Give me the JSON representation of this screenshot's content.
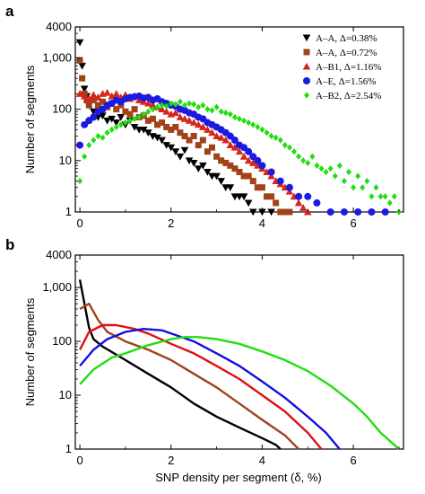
{
  "chart_data": [
    {
      "panel": "a",
      "type": "scatter",
      "ylabel": "Number of segments",
      "xlabel": "",
      "xlim": [
        -0.1,
        7.1
      ],
      "ylim": [
        1,
        4000
      ],
      "yscale": "log",
      "xticks": [
        "0",
        "2",
        "4",
        "6"
      ],
      "yticks": [
        "1",
        "10",
        "100",
        "1,000",
        "4000"
      ],
      "legend_position": "top-right",
      "series": [
        {
          "name": "A–A, Δ=0.38%",
          "marker": "triangle-down",
          "color": "#000000",
          "x": [
            0.0,
            0.05,
            0.1,
            0.15,
            0.2,
            0.3,
            0.4,
            0.5,
            0.6,
            0.7,
            0.8,
            0.9,
            1.0,
            1.1,
            1.2,
            1.3,
            1.4,
            1.5,
            1.6,
            1.7,
            1.8,
            1.9,
            2.0,
            2.1,
            2.2,
            2.3,
            2.4,
            2.5,
            2.6,
            2.7,
            2.8,
            2.9,
            3.0,
            3.1,
            3.2,
            3.3,
            3.4,
            3.5,
            3.6,
            3.7,
            3.8,
            4.0,
            4.2
          ],
          "y": [
            2000,
            700,
            250,
            180,
            120,
            90,
            70,
            75,
            60,
            65,
            55,
            70,
            50,
            60,
            45,
            40,
            40,
            35,
            30,
            28,
            25,
            20,
            18,
            15,
            12,
            16,
            10,
            9,
            7,
            8,
            6,
            5,
            5,
            4,
            3,
            3,
            2,
            2,
            2,
            1.5,
            1,
            1,
            1
          ]
        },
        {
          "name": "A–A, Δ=0.72%",
          "marker": "square",
          "color": "#a0421a",
          "x": [
            0.0,
            0.05,
            0.1,
            0.15,
            0.2,
            0.3,
            0.4,
            0.5,
            0.6,
            0.7,
            0.8,
            0.9,
            1.0,
            1.1,
            1.2,
            1.3,
            1.4,
            1.5,
            1.6,
            1.7,
            1.8,
            1.9,
            2.0,
            2.1,
            2.2,
            2.3,
            2.4,
            2.5,
            2.6,
            2.7,
            2.8,
            2.9,
            3.0,
            3.1,
            3.2,
            3.3,
            3.4,
            3.5,
            3.6,
            3.7,
            3.8,
            3.9,
            4.0,
            4.1,
            4.2,
            4.3,
            4.4,
            4.5,
            4.6
          ],
          "y": [
            900,
            400,
            200,
            150,
            120,
            150,
            120,
            140,
            110,
            130,
            100,
            120,
            90,
            80,
            100,
            70,
            75,
            60,
            65,
            50,
            55,
            45,
            40,
            45,
            35,
            30,
            25,
            30,
            20,
            25,
            15,
            18,
            12,
            10,
            9,
            8,
            7,
            6,
            5,
            5,
            4,
            3,
            3,
            2,
            2,
            1.5,
            1,
            1,
            1
          ]
        },
        {
          "name": "A–B1, Δ=1.16%",
          "marker": "triangle-up",
          "color": "#d4261a",
          "x": [
            0.0,
            0.1,
            0.2,
            0.3,
            0.4,
            0.5,
            0.6,
            0.7,
            0.8,
            0.9,
            1.0,
            1.1,
            1.2,
            1.3,
            1.4,
            1.5,
            1.6,
            1.7,
            1.8,
            1.9,
            2.0,
            2.1,
            2.2,
            2.3,
            2.4,
            2.5,
            2.6,
            2.7,
            2.8,
            2.9,
            3.0,
            3.1,
            3.2,
            3.3,
            3.4,
            3.5,
            3.6,
            3.7,
            3.8,
            3.9,
            4.0,
            4.1,
            4.2,
            4.3,
            4.4,
            4.5,
            4.6,
            4.7,
            4.8,
            4.9,
            5.0
          ],
          "y": [
            200,
            180,
            160,
            190,
            170,
            200,
            210,
            180,
            200,
            170,
            190,
            160,
            180,
            150,
            140,
            130,
            120,
            110,
            100,
            90,
            80,
            85,
            70,
            65,
            60,
            55,
            50,
            45,
            40,
            35,
            30,
            28,
            25,
            20,
            18,
            15,
            12,
            10,
            9,
            8,
            7,
            6,
            5,
            4,
            3.5,
            3,
            2.5,
            2,
            1.5,
            1.2,
            1
          ]
        },
        {
          "name": "A–E, Δ=1.56%",
          "marker": "circle",
          "color": "#1a1ae0",
          "x": [
            0.0,
            0.1,
            0.2,
            0.3,
            0.4,
            0.5,
            0.6,
            0.7,
            0.8,
            0.9,
            1.0,
            1.1,
            1.2,
            1.3,
            1.4,
            1.5,
            1.6,
            1.7,
            1.8,
            1.9,
            2.0,
            2.1,
            2.2,
            2.3,
            2.4,
            2.5,
            2.6,
            2.7,
            2.8,
            2.9,
            3.0,
            3.1,
            3.2,
            3.3,
            3.4,
            3.5,
            3.6,
            3.7,
            3.8,
            3.9,
            4.0,
            4.2,
            4.4,
            4.6,
            4.8,
            5.0,
            5.2,
            5.5,
            5.8,
            6.1,
            6.4,
            6.7
          ],
          "y": [
            20,
            50,
            60,
            70,
            90,
            100,
            120,
            130,
            150,
            140,
            160,
            170,
            175,
            180,
            165,
            170,
            150,
            160,
            140,
            130,
            120,
            115,
            100,
            95,
            85,
            80,
            70,
            65,
            55,
            50,
            45,
            40,
            35,
            30,
            25,
            20,
            18,
            15,
            12,
            10,
            8,
            6,
            4,
            3,
            2,
            2,
            1.5,
            1,
            1,
            1,
            1,
            1
          ]
        },
        {
          "name": "A–B2, Δ=2.54%",
          "marker": "diamond",
          "color": "#22dd11",
          "x": [
            0.0,
            0.1,
            0.2,
            0.3,
            0.4,
            0.5,
            0.6,
            0.7,
            0.8,
            0.9,
            1.0,
            1.1,
            1.2,
            1.3,
            1.4,
            1.5,
            1.6,
            1.7,
            1.8,
            1.9,
            2.0,
            2.1,
            2.2,
            2.3,
            2.4,
            2.5,
            2.6,
            2.7,
            2.8,
            2.9,
            3.0,
            3.1,
            3.2,
            3.3,
            3.4,
            3.5,
            3.6,
            3.7,
            3.8,
            3.9,
            4.0,
            4.1,
            4.2,
            4.3,
            4.4,
            4.5,
            4.6,
            4.7,
            4.8,
            4.9,
            5.0,
            5.1,
            5.2,
            5.3,
            5.4,
            5.5,
            5.6,
            5.7,
            5.8,
            5.9,
            6.0,
            6.1,
            6.2,
            6.3,
            6.4,
            6.5,
            6.6,
            6.7,
            6.8,
            6.9,
            7.0
          ],
          "y": [
            4,
            12,
            20,
            25,
            30,
            28,
            35,
            40,
            45,
            50,
            55,
            60,
            65,
            70,
            80,
            90,
            100,
            110,
            120,
            115,
            130,
            125,
            140,
            120,
            130,
            125,
            110,
            120,
            100,
            95,
            110,
            90,
            85,
            80,
            70,
            65,
            60,
            55,
            50,
            45,
            40,
            35,
            30,
            28,
            25,
            20,
            18,
            15,
            12,
            10,
            9,
            12,
            8,
            7,
            6,
            7,
            5,
            8,
            4,
            6,
            3,
            5,
            3,
            4,
            2,
            3,
            2,
            2,
            1.5,
            2,
            1
          ]
        }
      ]
    },
    {
      "panel": "b",
      "type": "line",
      "ylabel": "Number of segments",
      "xlabel": "SNP density per segment (δ, %)",
      "xlim": [
        -0.1,
        7.1
      ],
      "ylim": [
        1,
        4000
      ],
      "yscale": "log",
      "xticks": [
        "0",
        "2",
        "4",
        "6"
      ],
      "yticks": [
        "1",
        "10",
        "100",
        "1,000",
        "4000"
      ],
      "series": [
        {
          "color": "#000000",
          "x": [
            0,
            0.1,
            0.2,
            0.3,
            0.5,
            1.0,
            1.5,
            2.0,
            2.5,
            3.0,
            3.5,
            4.0,
            4.3,
            4.4
          ],
          "y": [
            1400,
            500,
            180,
            110,
            80,
            45,
            25,
            14,
            7,
            4,
            2.5,
            1.6,
            1.2,
            1
          ]
        },
        {
          "color": "#a0421a",
          "x": [
            0,
            0.2,
            0.4,
            0.6,
            1.0,
            1.5,
            2.0,
            2.5,
            3.0,
            3.5,
            4.0,
            4.5,
            4.8
          ],
          "y": [
            400,
            500,
            250,
            150,
            100,
            70,
            45,
            25,
            14,
            7,
            3.5,
            1.8,
            1
          ]
        },
        {
          "color": "#e01010",
          "x": [
            0,
            0.2,
            0.5,
            0.8,
            1.2,
            1.5,
            2.0,
            2.5,
            3.0,
            3.5,
            4.0,
            4.5,
            5.0,
            5.3
          ],
          "y": [
            70,
            150,
            200,
            200,
            170,
            140,
            90,
            60,
            35,
            20,
            10,
            5,
            2,
            1
          ]
        },
        {
          "color": "#1010e0",
          "x": [
            0,
            0.3,
            0.6,
            1.0,
            1.4,
            1.8,
            2.0,
            2.5,
            3.0,
            3.5,
            4.0,
            4.5,
            5.0,
            5.4,
            5.7
          ],
          "y": [
            35,
            70,
            110,
            150,
            170,
            160,
            140,
            100,
            60,
            35,
            18,
            9,
            4,
            2,
            1
          ]
        },
        {
          "color": "#22dd11",
          "x": [
            0,
            0.3,
            0.7,
            1.0,
            1.5,
            2.0,
            2.3,
            2.6,
            3.0,
            3.5,
            4.0,
            4.5,
            5.0,
            5.5,
            6.0,
            6.3,
            6.6,
            6.9,
            7.0
          ],
          "y": [
            16,
            30,
            50,
            60,
            85,
            110,
            120,
            120,
            110,
            90,
            65,
            45,
            28,
            15,
            7,
            4,
            2,
            1.2,
            1
          ]
        }
      ]
    }
  ]
}
